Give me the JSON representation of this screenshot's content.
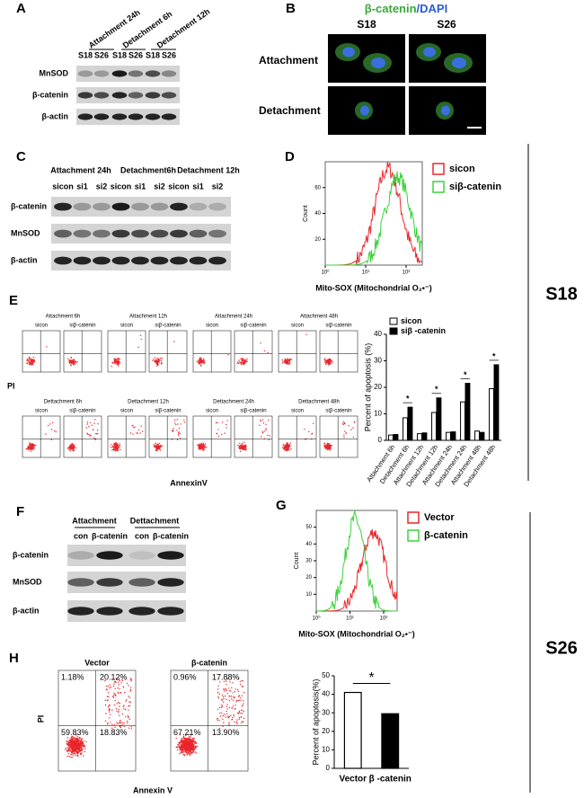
{
  "panels": {
    "A": {
      "label": "A",
      "groups": [
        "Attachment 24h",
        "Detachment 6h",
        "Detachment 12h"
      ],
      "lanes": [
        "S18",
        "S26",
        "S18",
        "S26",
        "S18",
        "S26"
      ],
      "rows": [
        "MnSOD",
        "β-catenin",
        "β-actin"
      ]
    },
    "B": {
      "label": "B",
      "title": [
        "β-catenin",
        "/DAPI"
      ],
      "columns": [
        "S18",
        "S26"
      ],
      "rows": [
        "Attachment",
        "Detachment"
      ]
    },
    "C": {
      "label": "C",
      "groups": [
        "Attachment 24h",
        "Detachment6h",
        "Detachment 12h"
      ],
      "lanes": [
        "sicon",
        "si1",
        "si2",
        "sicon",
        "si1",
        "si2",
        "sicon",
        "si1",
        "si2"
      ],
      "rows": [
        "β-catenin",
        "MnSOD",
        "β-actin"
      ]
    },
    "D": {
      "label": "D",
      "ylabel": "Count",
      "xlabel": "Mito-SOX (Mitochondrial O₂•⁻)",
      "legend": [
        {
          "name": "sicon",
          "color": "#e8262b"
        },
        {
          "name": "siβ-catenin",
          "color": "#3ad33a"
        }
      ],
      "ylim": [
        0,
        80
      ],
      "yticks": [
        20,
        40,
        60
      ],
      "xlim": [
        0,
        2.4
      ],
      "xticks": [
        {
          "value": 0,
          "label": "10⁰"
        },
        {
          "value": 1,
          "label": "10¹"
        },
        {
          "value": 2,
          "label": "10²"
        }
      ]
    },
    "E": {
      "label": "E",
      "plots": [
        "Attachment 6h",
        "Attachment 12h",
        "Attachment 24h",
        "Attachment 48h",
        "Dettachment 6h",
        "Dettachment 12h",
        "Dettachment 24h",
        "Dettachment 48h"
      ],
      "subtitles": [
        "sicon",
        "siβ-catenin"
      ],
      "ylabel": "PI",
      "xlabel": "AnnexinV"
    },
    "F": {
      "label": "F",
      "groups": [
        "Attachment",
        "Dettachment"
      ],
      "lanes": [
        "con",
        "β-catenin",
        "con",
        "β-catenin"
      ],
      "rows": [
        "β-catenin",
        "MnSOD",
        "β-actin"
      ]
    },
    "G": {
      "label": "G",
      "ylabel": "Count",
      "xlabel": "Mito-SOX (Mitochondrial O₂•⁻)",
      "legend": [
        {
          "name": "Vector",
          "color": "#e8262b"
        },
        {
          "name": "β-catenin",
          "color": "#3ad33a"
        }
      ],
      "ylim": [
        0,
        60
      ],
      "yticks": [
        10,
        20,
        30,
        40,
        50
      ],
      "xlim": [
        0,
        2.4
      ],
      "xticks": [
        {
          "value": 0,
          "label": "10⁰"
        },
        {
          "value": 1,
          "label": "10¹"
        },
        {
          "value": 2,
          "label": "10²"
        }
      ]
    },
    "H": {
      "label": "H",
      "plots": [
        {
          "title": "Vector",
          "quadrants": [
            "1.18%",
            "20.12%",
            "59.83%",
            "18.83%"
          ]
        },
        {
          "title": "β-catenin",
          "quadrants": [
            "0.96%",
            "17.88%",
            "67.21%",
            "13.90%"
          ]
        }
      ],
      "ylabel": "PI",
      "xlabel": "Annexin V"
    },
    "side_labels": [
      "S18",
      "S26"
    ]
  },
  "chart_data": [
    {
      "type": "bar",
      "ylabel": "Percent of apoptosis (%)",
      "categories": [
        "Attachment 6h",
        "Detachment 6h",
        "Attachment 12h",
        "Detachment 12h",
        "Attachment 24h",
        "Detachment 24h",
        "Attachment 48h",
        "Detachment 48h"
      ],
      "series": [
        {
          "name": "sicon",
          "color": "#ffffff",
          "values": [
            2,
            8.5,
            2.5,
            10.5,
            3,
            14.5,
            3.5,
            19.5
          ]
        },
        {
          "name": "siβ -catenin",
          "color": "#000000",
          "values": [
            2.2,
            12.5,
            2.8,
            16,
            3.2,
            21.5,
            3,
            28.5
          ]
        }
      ],
      "annotations": [
        null,
        "*",
        null,
        "*",
        null,
        "*",
        null,
        "*"
      ],
      "ylim": [
        0,
        40
      ],
      "yticks": [
        0,
        10,
        20,
        30,
        40
      ],
      "legend": "top-left"
    },
    {
      "type": "bar",
      "ylabel": "Percent of apoptosis(%)",
      "categories": [
        "Vector",
        "β -catenin"
      ],
      "values": [
        41,
        29.5
      ],
      "colors": [
        "#ffffff",
        "#000000"
      ],
      "annotation": "*",
      "ylim": [
        0,
        50
      ],
      "yticks": [
        0,
        10,
        20,
        30,
        40,
        50
      ]
    }
  ]
}
